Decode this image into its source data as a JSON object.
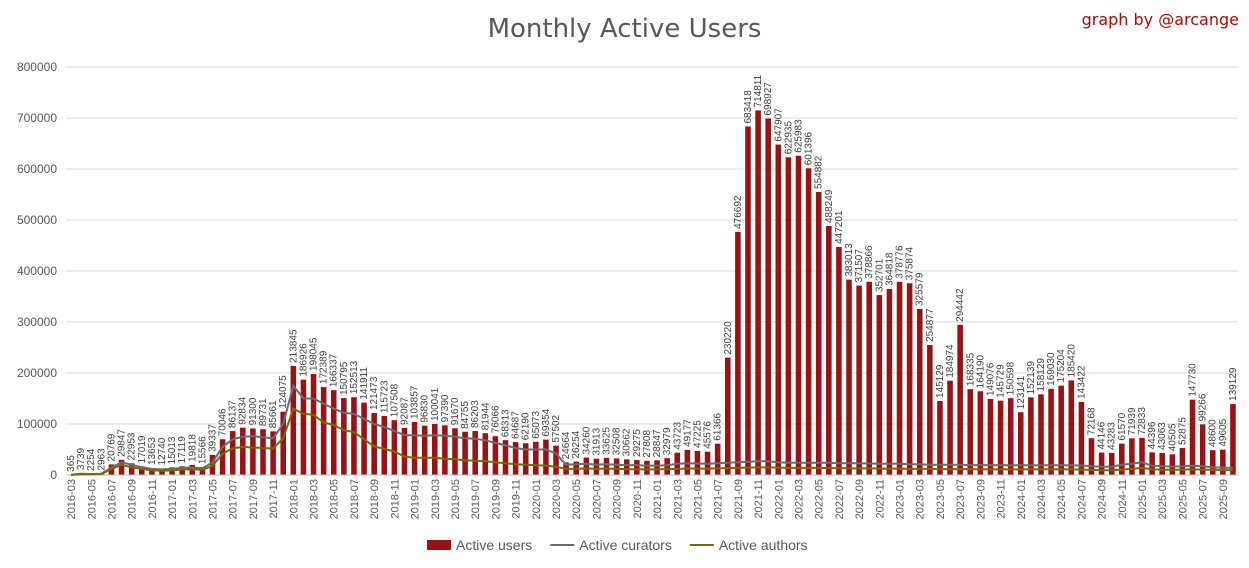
{
  "header": {
    "title": "Monthly Active Users",
    "credit": "graph by @arcange"
  },
  "chart_data": {
    "type": "bar",
    "title": "Monthly Active Users",
    "ylim": [
      0,
      800000
    ],
    "yticks": [
      "0",
      "100000",
      "200000",
      "300000",
      "400000",
      "500000",
      "600000",
      "700000",
      "800000"
    ],
    "grid": true,
    "legend_position": "bottom",
    "colors": {
      "users": "#9b1114",
      "curators": "#6b6b73",
      "authors": "#7a6a00"
    },
    "x": [
      "2016-03",
      "2016-04",
      "2016-05",
      "2016-06",
      "2016-07",
      "2016-08",
      "2016-09",
      "2016-10",
      "2016-11",
      "2016-12",
      "2017-01",
      "2017-02",
      "2017-03",
      "2017-04",
      "2017-05",
      "2017-06",
      "2017-07",
      "2017-08",
      "2017-09",
      "2017-10",
      "2017-11",
      "2017-12",
      "2018-01",
      "2018-02",
      "2018-03",
      "2018-04",
      "2018-05",
      "2018-06",
      "2018-07",
      "2018-08",
      "2018-09",
      "2018-10",
      "2018-11",
      "2018-12",
      "2019-01",
      "2019-02",
      "2019-03",
      "2019-04",
      "2019-05",
      "2019-06",
      "2019-07",
      "2019-08",
      "2019-09",
      "2019-10",
      "2019-11",
      "2019-12",
      "2020-01",
      "2020-02",
      "2020-03",
      "2020-04",
      "2020-05",
      "2020-06",
      "2020-07",
      "2020-08",
      "2020-09",
      "2020-10",
      "2020-11",
      "2020-12",
      "2021-01",
      "2021-02",
      "2021-03",
      "2021-04",
      "2021-05",
      "2021-06",
      "2021-07",
      "2021-08",
      "2021-09",
      "2021-10",
      "2021-11",
      "2021-12",
      "2022-01",
      "2022-02",
      "2022-03",
      "2022-04",
      "2022-05",
      "2022-06",
      "2022-07",
      "2022-08",
      "2022-09",
      "2022-10",
      "2022-11",
      "2022-12",
      "2023-01",
      "2023-02",
      "2023-03",
      "2023-04",
      "2023-05",
      "2023-06",
      "2023-07",
      "2023-08",
      "2023-09",
      "2023-10",
      "2023-11",
      "2023-12",
      "2024-01",
      "2024-02",
      "2024-03",
      "2024-04",
      "2024-05",
      "2024-06",
      "2024-07",
      "2024-08",
      "2024-09",
      "2024-10",
      "2024-11",
      "2024-12",
      "2025-01",
      "2025-02",
      "2025-03",
      "2025-04",
      "2025-05",
      "2025-06",
      "2025-07",
      "2025-08",
      "2025-09",
      "2025-10"
    ],
    "series": [
      {
        "name": "Active users",
        "type": "bar",
        "values": [
          365,
          3739,
          2254,
          2963,
          20769,
          29847,
          22953,
          17019,
          13653,
          12740,
          15013,
          17119,
          19818,
          15566,
          39337,
          70046,
          86137,
          92834,
          91300,
          89731,
          85661,
          124075,
          213845,
          186926,
          198045,
          172389,
          166337,
          150795,
          152513,
          141911,
          121473,
          115723,
          107508,
          92087,
          103857,
          96830,
          100041,
          97390,
          91670,
          84755,
          86203,
          81944,
          76066,
          68313,
          64687,
          62190,
          65073,
          69354,
          57502,
          24664,
          26254,
          34260,
          31913,
          33625,
          32508,
          30662,
          29275,
          27808,
          28847,
          32979,
          43723,
          49177,
          47225,
          45576,
          61366,
          230220,
          476692,
          683418,
          714811,
          698927,
          647907,
          622935,
          625983,
          601396,
          554882,
          488249,
          447201,
          383013,
          371507,
          378866,
          352701,
          364818,
          378776,
          375874,
          325579,
          254877,
          145129,
          184974,
          294442,
          168335,
          164190,
          149076,
          145729,
          150598,
          123141,
          152139,
          158129,
          169030,
          175204,
          185420,
          143422,
          72168,
          44146,
          43283,
          61570,
          71939,
          72833,
          44396,
          43063,
          40505,
          52875,
          147730,
          99266,
          48600,
          49605,
          139129
        ]
      },
      {
        "name": "Active curators",
        "type": "line",
        "values": [
          300,
          2500,
          2000,
          2500,
          15000,
          25000,
          20000,
          15000,
          12000,
          11000,
          12000,
          14000,
          15000,
          13000,
          25000,
          55000,
          70000,
          75000,
          76000,
          74000,
          72000,
          100000,
          175000,
          150000,
          150000,
          140000,
          130000,
          122000,
          120000,
          110000,
          100000,
          94000,
          86000,
          78000,
          78000,
          77000,
          78000,
          77000,
          75000,
          72000,
          71000,
          68000,
          63000,
          58000,
          53000,
          50000,
          50000,
          50000,
          42000,
          20000,
          21000,
          22000,
          20000,
          21000,
          20000,
          19500,
          19000,
          18500,
          18500,
          19000,
          22000,
          23000,
          22500,
          22000,
          23000,
          24000,
          25000,
          26000,
          27000,
          27000,
          25000,
          24000,
          24000,
          24000,
          24000,
          24000,
          23000,
          23000,
          23000,
          22500,
          22000,
          22000,
          22000,
          21000,
          21000,
          20000,
          20000,
          20000,
          20000,
          19500,
          19500,
          19500,
          19500,
          19000,
          19000,
          19000,
          19000,
          19000,
          19000,
          19000,
          18500,
          17000,
          16000,
          16000,
          20000,
          22000,
          25000,
          18000,
          17000,
          16500,
          17000,
          18000,
          17000,
          15000,
          14500,
          14000
        ]
      },
      {
        "name": "Active authors",
        "type": "line",
        "values": [
          200,
          1500,
          1500,
          2000,
          12000,
          20000,
          15000,
          12000,
          9000,
          8500,
          9000,
          11000,
          11000,
          10000,
          18000,
          42000,
          52000,
          55000,
          54000,
          53000,
          52000,
          72000,
          130000,
          120000,
          118000,
          103000,
          98000,
          88000,
          84000,
          70000,
          56000,
          51000,
          46000,
          36000,
          34000,
          34000,
          34000,
          32000,
          31000,
          29000,
          28000,
          27000,
          25000,
          23000,
          21000,
          20000,
          19500,
          18500,
          16000,
          12000,
          12000,
          13000,
          12000,
          12500,
          12000,
          11500,
          11000,
          11000,
          11000,
          11500,
          12000,
          13000,
          12500,
          12500,
          13000,
          13500,
          14000,
          14500,
          15000,
          15000,
          14500,
          14000,
          14000,
          14000,
          14000,
          13500,
          13500,
          13000,
          13000,
          13000,
          12500,
          12500,
          12500,
          12000,
          12000,
          12000,
          11500,
          11500,
          11500,
          11500,
          11000,
          11000,
          11000,
          11000,
          11000,
          11000,
          11000,
          11000,
          11000,
          11000,
          10500,
          10000,
          9500,
          9500,
          10500,
          12000,
          14000,
          11000,
          10500,
          10000,
          10500,
          11000,
          10500,
          10000,
          9800,
          9500
        ]
      }
    ]
  }
}
